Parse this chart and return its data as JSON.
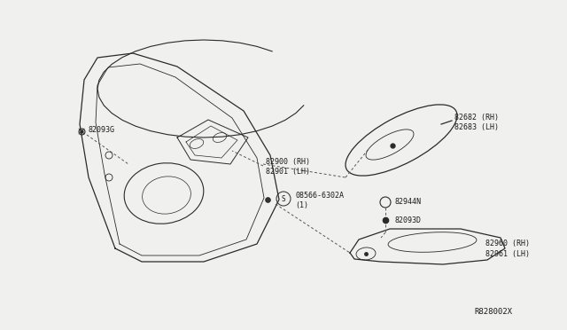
{
  "bg_color": "#f0f0ee",
  "line_color": "#2a2a2a",
  "text_color": "#1a1a1a",
  "diagram_id": "R828002X",
  "font_size": 6.0,
  "parts": {
    "82093G": {
      "label": "82093G"
    },
    "82900": {
      "label": "82900 (RH)\n82901 (LH)"
    },
    "08566": {
      "label": "08566-6302A\n(1)"
    },
    "82682": {
      "label": "82682 (RH)\n82683 (LH)"
    },
    "82944N": {
      "label": "82944N"
    },
    "82093D": {
      "label": "82093D"
    },
    "82960": {
      "label": "82960 (RH)\n82961 (LH)"
    }
  }
}
